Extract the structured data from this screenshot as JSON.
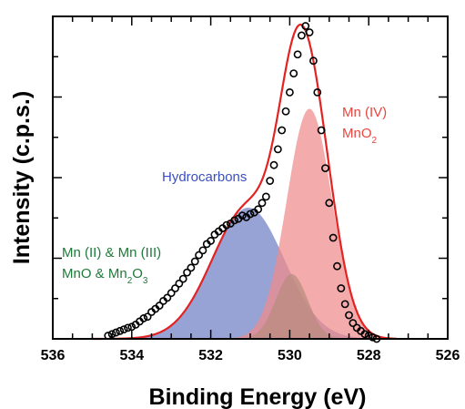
{
  "chart_data": {
    "type": "area",
    "xlabel": "Binding Energy (eV)",
    "ylabel": "Intensity (c.p.s.)",
    "xlim": [
      536,
      526
    ],
    "x_reversed": true,
    "x_ticks": [
      "536",
      "534",
      "532",
      "530",
      "528",
      "526"
    ],
    "y_tick_labels_shown": false,
    "grid": false,
    "y_units": "relative intensity",
    "ylim": [
      0,
      1.0
    ],
    "components": [
      {
        "key": "hydro",
        "center": 531.05,
        "height": 0.415,
        "fwhm": 2.15,
        "color": "#6f7fc4"
      },
      {
        "key": "mn23",
        "center": 529.95,
        "height": 0.205,
        "fwhm": 0.95,
        "color": "#2c8c5a"
      },
      {
        "key": "mn4",
        "center": 529.5,
        "height": 0.728,
        "fwhm": 1.35,
        "color": "#f08a8a"
      }
    ],
    "fit_curve": {
      "color": "#e32222"
    },
    "data_points": {
      "x": [
        534.6,
        534.5,
        534.4,
        534.3,
        534.2,
        534.1,
        534.0,
        533.9,
        533.8,
        533.7,
        533.6,
        533.5,
        533.4,
        533.3,
        533.2,
        533.1,
        533.0,
        532.9,
        532.8,
        532.7,
        532.6,
        532.5,
        532.4,
        532.3,
        532.2,
        532.1,
        532.0,
        531.9,
        531.8,
        531.7,
        531.6,
        531.5,
        531.4,
        531.3,
        531.2,
        531.1,
        531.0,
        530.9,
        530.8,
        530.7,
        530.6,
        530.5,
        530.4,
        530.3,
        530.2,
        530.1,
        530.0,
        529.9,
        529.8,
        529.7,
        529.6,
        529.5,
        529.4,
        529.3,
        529.2,
        529.1,
        529.0,
        528.9,
        528.8,
        528.7,
        528.6,
        528.5,
        528.4,
        528.3,
        528.2,
        528.1,
        528.0,
        527.9,
        527.8
      ],
      "y": [
        0.01,
        0.015,
        0.02,
        0.025,
        0.03,
        0.035,
        0.038,
        0.045,
        0.055,
        0.065,
        0.07,
        0.085,
        0.095,
        0.105,
        0.12,
        0.13,
        0.145,
        0.16,
        0.175,
        0.19,
        0.21,
        0.225,
        0.245,
        0.265,
        0.28,
        0.3,
        0.31,
        0.33,
        0.34,
        0.35,
        0.36,
        0.365,
        0.375,
        0.38,
        0.39,
        0.385,
        0.395,
        0.4,
        0.41,
        0.43,
        0.45,
        0.5,
        0.55,
        0.6,
        0.66,
        0.72,
        0.78,
        0.84,
        0.9,
        0.96,
        0.99,
        0.97,
        0.88,
        0.78,
        0.66,
        0.54,
        0.43,
        0.32,
        0.23,
        0.16,
        0.11,
        0.075,
        0.05,
        0.035,
        0.025,
        0.015,
        0.01,
        0.005,
        0.0
      ]
    },
    "annotations": [
      {
        "key": "mn4_a",
        "text": "Mn (IV)",
        "color": "#e8463f"
      },
      {
        "key": "mn4_b",
        "text": "MnO",
        "sub": "2",
        "color": "#e8463f"
      },
      {
        "key": "hydro",
        "text": "Hydrocarbons",
        "color": "#3a4fbf"
      },
      {
        "key": "mn23_a",
        "text": "Mn (II) & Mn (III)",
        "color": "#1f7a3a"
      },
      {
        "key": "mn23_b",
        "parts": [
          "MnO & Mn",
          "2",
          "O",
          "3"
        ],
        "color": "#1f7a3a"
      }
    ]
  }
}
